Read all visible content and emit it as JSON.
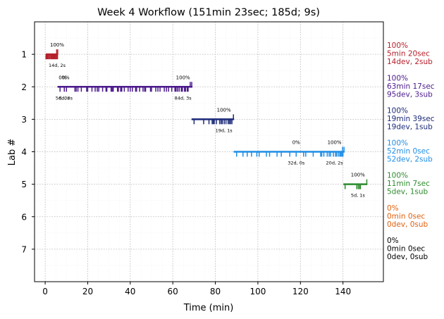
{
  "chart_data": {
    "type": "timeline",
    "title": "Week 4 Workflow (151min 23sec; 185d; 9s)",
    "xlabel": "Time (min)",
    "ylabel": "Lab #",
    "xlim": [
      -5,
      159
    ],
    "ylim": [
      8,
      0
    ],
    "xticks": [
      0,
      20,
      40,
      60,
      80,
      100,
      120,
      140
    ],
    "yticks": [
      1,
      2,
      3,
      4,
      5,
      6,
      7
    ],
    "grid": true,
    "labs": [
      {
        "lab": 1,
        "color": "#b5202b",
        "start": 0.3,
        "end": 6,
        "summary": [
          "100%",
          "5min 20sec",
          "14dev, 2sub"
        ],
        "subs": [
          {
            "time": 5.6,
            "pct": "100%",
            "label": "14d, 2s"
          }
        ],
        "dev_ticks": [
          0.4,
          0.8,
          1.2,
          1.6,
          2.1,
          2.6,
          3.0,
          3.4,
          3.8,
          4.2,
          4.6,
          5.0,
          5.5,
          5.8
        ],
        "sub_ticks": [
          5.4,
          5.9
        ]
      },
      {
        "lab": 2,
        "color": "#4b1a8c",
        "start": 5.8,
        "end": 69.2,
        "summary": [
          "100%",
          "63min 17sec",
          "95dev, 3sub"
        ],
        "subs": [
          {
            "time": 8.2,
            "pct": "0%",
            "label": "5d, 0s"
          },
          {
            "time": 9.6,
            "pct": "0%",
            "label": "6d, 0s"
          },
          {
            "time": 64.8,
            "pct": "100%",
            "label": "84d, 3s"
          }
        ],
        "dev_ticks": [
          7.0,
          9.0,
          10.0,
          14.0,
          14.6,
          15.4,
          17.0,
          19.5,
          20.0,
          22.0,
          23.5,
          24.5,
          25.2,
          27.0,
          28.6,
          29.0,
          31.0,
          31.5,
          32.0,
          34.0,
          34.4,
          35.5,
          36.0,
          37.2,
          39.0,
          40.0,
          41.0,
          42.5,
          43.0,
          44.4,
          46.0,
          46.8,
          47.2,
          49.5,
          50.0,
          52.0,
          53.0,
          54.0,
          56.0,
          57.0,
          58.0,
          59.5,
          61.0,
          61.5,
          62.2,
          63.0,
          64.0,
          64.5,
          65.5,
          66.0,
          66.8,
          67.2
        ],
        "sub_ticks": [
          68.2,
          68.9
        ]
      },
      {
        "lab": 3,
        "color": "#1c2a78",
        "start": 68.8,
        "end": 88.8,
        "summary": [
          "100%",
          "19min 39sec",
          "19dev, 1sub"
        ],
        "subs": [
          {
            "time": 84.0,
            "pct": "100%",
            "label": "19d, 1s"
          }
        ],
        "dev_ticks": [
          70.0,
          74.5,
          77.0,
          78.5,
          79.0,
          79.5,
          80.5,
          82.0,
          82.7,
          83.3,
          84.2,
          85.0,
          86.0,
          86.6,
          87.2,
          87.8
        ],
        "sub_ticks": [
          88.5
        ]
      },
      {
        "lab": 4,
        "color": "#1f8ee6",
        "start": 88.6,
        "end": 140.8,
        "summary": [
          "100%",
          "52min 0sec",
          "52dev, 2sub"
        ],
        "subs": [
          {
            "time": 118.0,
            "pct": "0%",
            "label": "32d, 0s"
          },
          {
            "time": 136.0,
            "pct": "100%",
            "label": "20d, 2s"
          }
        ],
        "dev_ticks": [
          90.0,
          93.0,
          95.0,
          97.0,
          99.5,
          100.6,
          104.0,
          105.5,
          109.0,
          111.0,
          115.0,
          118.0,
          121.5,
          122.5,
          126.0,
          129.5,
          130.0,
          131.0,
          132.6,
          133.5,
          134.2,
          135.5,
          136.5,
          137.0,
          137.8,
          138.5,
          139.0,
          139.5,
          140.0
        ],
        "sub_ticks": [
          139.8,
          140.5
        ]
      },
      {
        "lab": 5,
        "color": "#2e8b2e",
        "start": 140.2,
        "end": 151.4,
        "summary": [
          "100%",
          "11min 7sec",
          "5dev, 1sub"
        ],
        "subs": [
          {
            "time": 147.0,
            "pct": "100%",
            "label": "5d, 1s"
          }
        ],
        "dev_ticks": [
          141.0,
          146.5,
          147.2,
          147.8,
          148.2
        ],
        "sub_ticks": [
          151.2
        ]
      },
      {
        "lab": 6,
        "color": "#e06010",
        "start": null,
        "end": null,
        "summary": [
          "0%",
          "0min 0sec",
          "0dev, 0sub"
        ],
        "subs": [],
        "dev_ticks": [],
        "sub_ticks": []
      },
      {
        "lab": 7,
        "color": "#000000",
        "start": null,
        "end": null,
        "summary": [
          "0%",
          "0min 0sec",
          "0dev, 0sub"
        ],
        "subs": [],
        "dev_ticks": [],
        "sub_ticks": []
      }
    ]
  }
}
